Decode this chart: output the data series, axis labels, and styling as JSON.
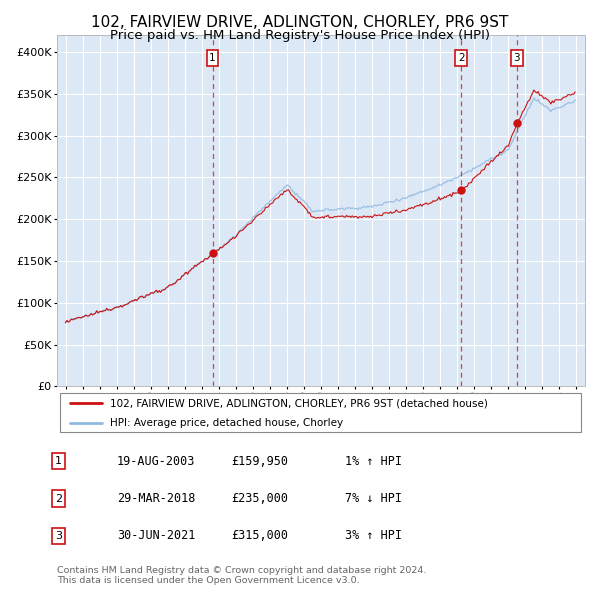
{
  "title": "102, FAIRVIEW DRIVE, ADLINGTON, CHORLEY, PR6 9ST",
  "subtitle": "Price paid vs. HM Land Registry's House Price Index (HPI)",
  "xlim": [
    1994.5,
    2025.5
  ],
  "ylim": [
    0,
    420000
  ],
  "yticks": [
    0,
    50000,
    100000,
    150000,
    200000,
    250000,
    300000,
    350000,
    400000
  ],
  "ytick_labels": [
    "£0",
    "£50K",
    "£100K",
    "£150K",
    "£200K",
    "£250K",
    "£300K",
    "£350K",
    "£400K"
  ],
  "background_color": "#dce8f5",
  "grid_color": "#ffffff",
  "hpi_color": "#90b8e0",
  "price_color": "#cc1111",
  "vline_color": "#dd2222",
  "dot_color": "#cc1111",
  "sale_points": [
    {
      "date_decimal": 2003.63,
      "price": 159950,
      "label": "1"
    },
    {
      "date_decimal": 2018.24,
      "price": 235000,
      "label": "2"
    },
    {
      "date_decimal": 2021.49,
      "price": 315000,
      "label": "3"
    }
  ],
  "sale_labels_info": [
    {
      "label": "1",
      "date": "19-AUG-2003",
      "price": "£159,950",
      "hpi": "1% ↑ HPI"
    },
    {
      "label": "2",
      "date": "29-MAR-2018",
      "price": "£235,000",
      "hpi": "7% ↓ HPI"
    },
    {
      "label": "3",
      "date": "30-JUN-2021",
      "price": "£315,000",
      "hpi": "3% ↑ HPI"
    }
  ],
  "legend_line1": "102, FAIRVIEW DRIVE, ADLINGTON, CHORLEY, PR6 9ST (detached house)",
  "legend_line2": "HPI: Average price, detached house, Chorley",
  "footnote": "Contains HM Land Registry data © Crown copyright and database right 2024.\nThis data is licensed under the Open Government Licence v3.0.",
  "title_fontsize": 11,
  "subtitle_fontsize": 9.5
}
